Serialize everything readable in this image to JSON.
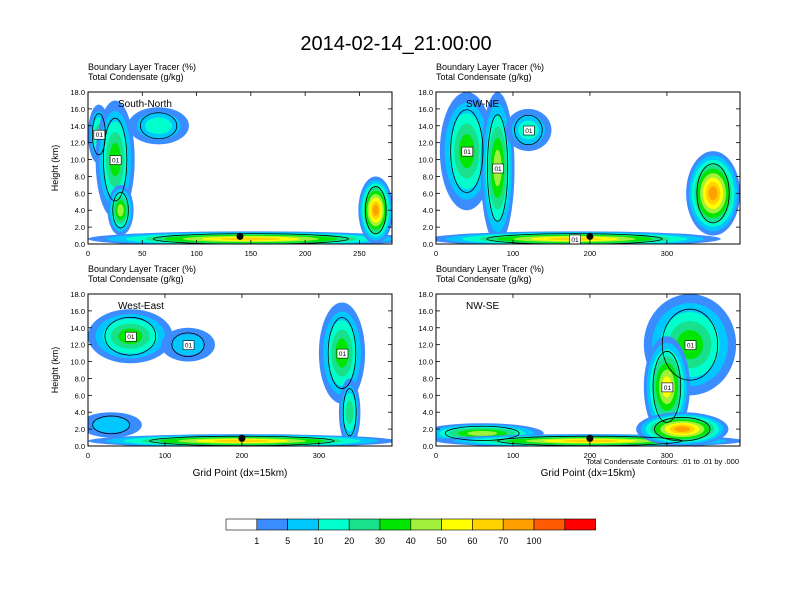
{
  "chart_data": {
    "type": "heatmap",
    "title": "2014-02-14_21:00:00",
    "colorbar": {
      "labels": [
        "1",
        "5",
        "10",
        "20",
        "30",
        "40",
        "50",
        "60",
        "70",
        "100"
      ],
      "colors": [
        "#ffffff",
        "#3a8cff",
        "#00c8ff",
        "#00ffcc",
        "#19e08a",
        "#00e600",
        "#a0f03c",
        "#ffff00",
        "#ffd200",
        "#ffa000",
        "#ff5a00",
        "#ff0000"
      ]
    },
    "contour_note": "Total Condensate Contours: .01 to .01 by .000",
    "panels": [
      {
        "label": "South-North",
        "line1": "Boundary Layer Tracer   (%)",
        "line2": "Total Condensate   (g/kg)",
        "ylabel": "Height (km)",
        "xlabel": "",
        "xlim": [
          0,
          280
        ],
        "xticks": [
          "0",
          "50",
          "100",
          "150",
          "200",
          "250"
        ],
        "xtick_values": [
          0,
          50,
          100,
          150,
          200,
          250
        ],
        "yticks": [
          "0.0",
          "2.0",
          "4.0",
          "6.0",
          "8.0",
          "10.0",
          "12.0",
          "14.0",
          "16.0",
          "18.0"
        ],
        "marker_x": 140,
        "contour_labels": [
          "01",
          "01"
        ],
        "tracer_blobs": [
          {
            "x": 10,
            "y": 13,
            "rx": 10,
            "ry": 3.5,
            "level": 4
          },
          {
            "x": 25,
            "y": 10,
            "rx": 18,
            "ry": 7,
            "level": 5
          },
          {
            "x": 30,
            "y": 4,
            "rx": 12,
            "ry": 3,
            "level": 6
          },
          {
            "x": 65,
            "y": 14,
            "rx": 28,
            "ry": 2.2,
            "level": 3
          },
          {
            "x": 150,
            "y": 0.6,
            "rx": 150,
            "ry": 0.9,
            "level": 8
          },
          {
            "x": 265,
            "y": 4,
            "rx": 16,
            "ry": 4,
            "level": 9
          }
        ]
      },
      {
        "label": "SW-NE",
        "line1": "Boundary Layer Tracer   (%)",
        "line2": "Total Condensate   (g/kg)",
        "ylabel": "",
        "xlabel": "",
        "xlim": [
          0,
          395
        ],
        "xticks": [
          "0",
          "100",
          "200",
          "300"
        ],
        "xtick_values": [
          0,
          100,
          200,
          300
        ],
        "yticks": [
          "0.0",
          "2.0",
          "4.0",
          "6.0",
          "8.0",
          "10.0",
          "12.0",
          "14.0",
          "16.0",
          "18.0"
        ],
        "marker_x": 200,
        "contour_labels": [
          "01",
          "01",
          "01",
          "01"
        ],
        "tracer_blobs": [
          {
            "x": 40,
            "y": 11,
            "rx": 35,
            "ry": 7,
            "level": 5
          },
          {
            "x": 80,
            "y": 9,
            "rx": 22,
            "ry": 9,
            "level": 6
          },
          {
            "x": 120,
            "y": 13.5,
            "rx": 30,
            "ry": 2.5,
            "level": 3
          },
          {
            "x": 180,
            "y": 0.6,
            "rx": 190,
            "ry": 0.9,
            "level": 8
          },
          {
            "x": 360,
            "y": 6,
            "rx": 35,
            "ry": 5,
            "level": 9
          }
        ]
      },
      {
        "label": "West-East",
        "line1": "Boundary Layer Tracer   (%)",
        "line2": "Total Condensate   (g/kg)",
        "ylabel": "Height (km)",
        "xlabel": "Grid Point (dx=15km)",
        "xlim": [
          0,
          395
        ],
        "xticks": [
          "0",
          "100",
          "200",
          "300"
        ],
        "xtick_values": [
          0,
          100,
          200,
          300
        ],
        "yticks": [
          "0.0",
          "2.0",
          "4.0",
          "6.0",
          "8.0",
          "10.0",
          "12.0",
          "14.0",
          "16.0",
          "18.0"
        ],
        "marker_x": 200,
        "contour_labels": [
          "01",
          "01",
          "01"
        ],
        "tracer_blobs": [
          {
            "x": 55,
            "y": 13,
            "rx": 55,
            "ry": 3.2,
            "level": 5
          },
          {
            "x": 130,
            "y": 12,
            "rx": 35,
            "ry": 2,
            "level": 2
          },
          {
            "x": 330,
            "y": 11,
            "rx": 30,
            "ry": 6,
            "level": 5
          },
          {
            "x": 340,
            "y": 4,
            "rx": 14,
            "ry": 4,
            "level": 4
          },
          {
            "x": 30,
            "y": 2.5,
            "rx": 40,
            "ry": 1.5,
            "level": 2
          },
          {
            "x": 200,
            "y": 0.6,
            "rx": 200,
            "ry": 0.8,
            "level": 8
          }
        ]
      },
      {
        "label": "NW-SE",
        "line1": "Boundary Layer Tracer   (%)",
        "line2": "Total Condensate   (g/kg)",
        "ylabel": "",
        "xlabel": "Grid Point (dx=15km)",
        "xlim": [
          0,
          395
        ],
        "xticks": [
          "0",
          "100",
          "200",
          "300"
        ],
        "xtick_values": [
          0,
          100,
          200,
          300
        ],
        "yticks": [
          "0.0",
          "2.0",
          "4.0",
          "6.0",
          "8.0",
          "10.0",
          "12.0",
          "14.0",
          "16.0",
          "18.0"
        ],
        "marker_x": 200,
        "contour_labels": [
          "01",
          "01"
        ],
        "tracer_blobs": [
          {
            "x": 330,
            "y": 12,
            "rx": 60,
            "ry": 6,
            "level": 5
          },
          {
            "x": 300,
            "y": 7,
            "rx": 30,
            "ry": 6,
            "level": 7
          },
          {
            "x": 60,
            "y": 1.5,
            "rx": 80,
            "ry": 1.2,
            "level": 6
          },
          {
            "x": 200,
            "y": 0.6,
            "rx": 200,
            "ry": 0.8,
            "level": 8
          },
          {
            "x": 320,
            "y": 2,
            "rx": 60,
            "ry": 2,
            "level": 9
          }
        ]
      }
    ]
  }
}
